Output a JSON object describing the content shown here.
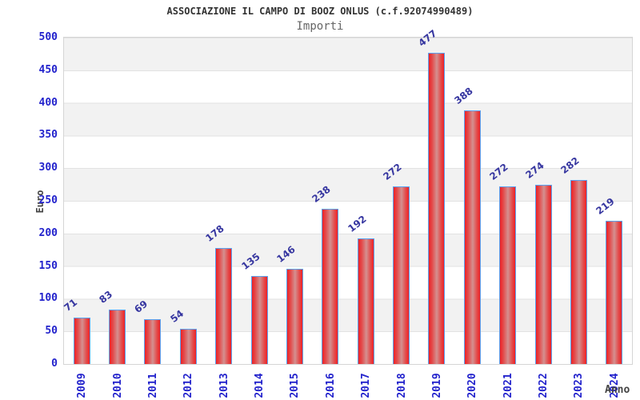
{
  "chart_data": {
    "type": "bar",
    "title": "ASSOCIAZIONE IL CAMPO DI BOOZ ONLUS (c.f.92074990489)",
    "subtitle": "Importi",
    "ylabel": "Euro",
    "xlabel": "Anno",
    "categories": [
      "2009",
      "2010",
      "2011",
      "2012",
      "2013",
      "2014",
      "2015",
      "2016",
      "2017",
      "2018",
      "2019",
      "2020",
      "2021",
      "2022",
      "2023",
      "2024"
    ],
    "values": [
      71,
      83,
      69,
      54,
      178,
      135,
      146,
      238,
      192,
      272,
      477,
      388,
      272,
      274,
      282,
      219
    ],
    "ylim": [
      0,
      500
    ],
    "ytick_step": 50,
    "grid": "horizontal-bands",
    "legend_position": "none",
    "colors": {
      "background": "#ffffff",
      "title": "#333333",
      "subtitle": "#666666",
      "axis_titles": "#444444",
      "tick_labels": "#2222cc",
      "value_labels": "#3636a0",
      "bar_edge": "#5aa2f0",
      "bar_red": "#ee2125",
      "bar_mid": "#e34b4b",
      "bar_highlight": "#d49090",
      "band": "#f2f2f2",
      "gridline": "#e2e2e2"
    }
  }
}
